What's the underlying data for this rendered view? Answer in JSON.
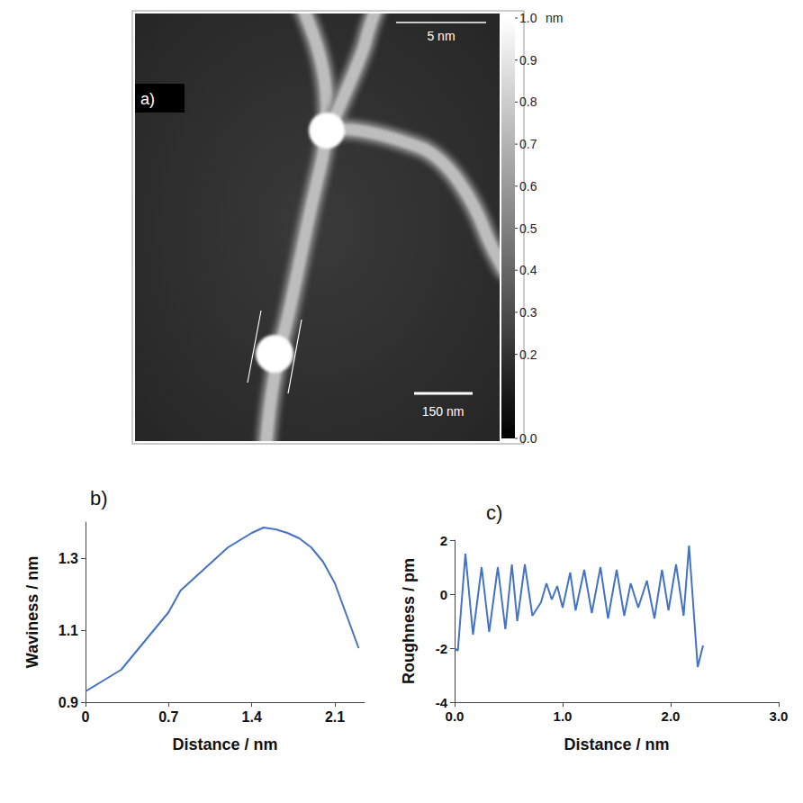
{
  "image_panel": {
    "panel_label": "a)",
    "scale_bars": [
      "5 nm",
      "150 nm"
    ],
    "colorbar": {
      "unit": "nm",
      "range": [
        0,
        1
      ],
      "ticks": [
        {
          "value": 1,
          "label": "1.0"
        },
        {
          "value": 0.9,
          "label": "0.9"
        },
        {
          "value": 0.8,
          "label": "0.8"
        },
        {
          "value": 0.7,
          "label": "0.7"
        },
        {
          "value": 0.6,
          "label": "0.6"
        },
        {
          "value": 0.5,
          "label": "0.5"
        },
        {
          "value": 0.4,
          "label": "0.4"
        },
        {
          "value": 0.3,
          "label": "0.3"
        },
        {
          "value": 0.2,
          "label": "0.2"
        },
        {
          "value": 0,
          "label": "0.0"
        }
      ]
    }
  },
  "chart_data": [
    {
      "type": "line",
      "panel_label": "b)",
      "x_label": "Distance / nm",
      "y_label": "Waviness / nm",
      "color": "#4472c4",
      "grid": false,
      "x": [
        0,
        0.15,
        0.3,
        0.5,
        0.7,
        0.8,
        1.0,
        1.2,
        1.4,
        1.5,
        1.6,
        1.7,
        1.8,
        1.9,
        2.0,
        2.1,
        2.2,
        2.3
      ],
      "values": [
        0.93,
        0.96,
        0.99,
        1.07,
        1.15,
        1.21,
        1.27,
        1.33,
        1.37,
        1.385,
        1.38,
        1.37,
        1.355,
        1.33,
        1.29,
        1.23,
        1.14,
        1.05
      ],
      "xlim": [
        0,
        2.35
      ],
      "ylim": [
        0.9,
        1.4
      ],
      "xticks": [
        0,
        0.7,
        1.4,
        2.1
      ],
      "yticks": [
        0.9,
        1.1,
        1.3
      ]
    },
    {
      "type": "line",
      "panel_label": "c)",
      "x_label": "Distance / nm",
      "y_label": "Roughness / pm",
      "color": "#4472c4",
      "grid": false,
      "x": [
        0,
        0.03,
        0.1,
        0.17,
        0.25,
        0.32,
        0.4,
        0.47,
        0.53,
        0.58,
        0.65,
        0.72,
        0.8,
        0.85,
        0.9,
        0.95,
        1.0,
        1.07,
        1.12,
        1.2,
        1.27,
        1.35,
        1.42,
        1.5,
        1.57,
        1.63,
        1.7,
        1.78,
        1.85,
        1.92,
        1.98,
        2.05,
        2.12,
        2.17,
        2.25,
        2.3
      ],
      "values": [
        -2,
        -2.1,
        1.5,
        -1.5,
        1.0,
        -1.4,
        1.0,
        -1.3,
        1.1,
        -1.0,
        1.1,
        -0.8,
        -0.3,
        0.4,
        -0.2,
        0.3,
        -0.5,
        0.8,
        -0.6,
        0.9,
        -0.7,
        1.0,
        -0.9,
        0.9,
        -0.8,
        0.4,
        -0.5,
        0.5,
        -0.9,
        0.9,
        -0.6,
        1.1,
        -0.8,
        1.8,
        -2.7,
        -1.9
      ],
      "xlim": [
        0,
        3
      ],
      "ylim": [
        -4,
        2
      ],
      "xticks": [
        {
          "value": 0,
          "label": "0.0"
        },
        {
          "value": 1,
          "label": "1.0"
        },
        {
          "value": 2,
          "label": "2.0"
        },
        {
          "value": 3,
          "label": "3.0"
        }
      ],
      "yticks": [
        -4,
        -2,
        0,
        2
      ]
    }
  ]
}
